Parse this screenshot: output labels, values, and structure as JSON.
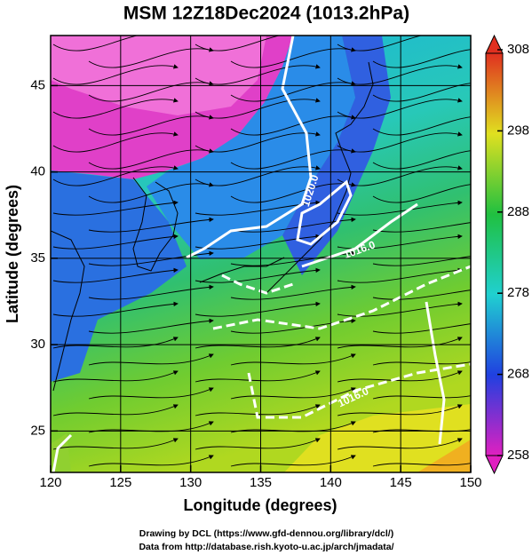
{
  "title": "MSM 12Z18Dec2024 (1013.2hPa)",
  "x_axis": {
    "label": "Longitude (degrees)",
    "lim": [
      120,
      150
    ],
    "ticks": [
      120,
      125,
      130,
      135,
      140,
      145,
      150
    ]
  },
  "y_axis": {
    "label": "Latitude  (degrees)",
    "lim": [
      22.6,
      47.9
    ],
    "ticks": [
      25,
      30,
      35,
      40,
      45
    ]
  },
  "colorbar": {
    "lim": [
      258,
      308
    ],
    "ticks": [
      258,
      268,
      278,
      288,
      298,
      308
    ]
  },
  "contour_labels": [
    "1020.0",
    "1016.0",
    "1016.0"
  ],
  "credits": [
    "Drawing by DCL (https://www.gfd-dennou.org/library/dcl/)",
    "Data from http://database.rish.kyoto-u.ac.jp/arch/jmadata/"
  ]
}
